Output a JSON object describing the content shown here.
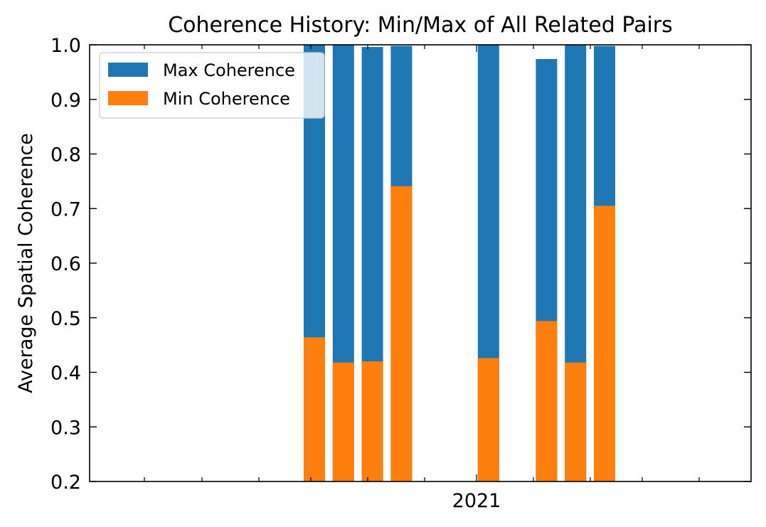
{
  "chart_data": {
    "type": "bar",
    "title": "Coherence History: Min/Max of All Related Pairs",
    "xlabel": "",
    "ylabel": "Average Spatial Coherence",
    "ylim": [
      0.2,
      1.0
    ],
    "yticks": [
      "0.2",
      "0.3",
      "0.4",
      "0.5",
      "0.6",
      "0.7",
      "0.8",
      "0.9",
      "1.0"
    ],
    "xticks": [
      "2021"
    ],
    "grid": false,
    "legend_position": "top-left",
    "bar_slots": [
      0,
      1,
      2,
      3,
      6,
      8,
      9,
      10
    ],
    "series": [
      {
        "name": "Max Coherence",
        "color": "#1f77b4",
        "values": [
          1.0,
          1.0,
          0.996,
          0.998,
          1.0,
          0.974,
          1.0,
          0.998
        ]
      },
      {
        "name": "Min Coherence",
        "color": "#ff7f0e",
        "values": [
          0.464,
          0.418,
          0.42,
          0.741,
          0.426,
          0.494,
          0.418,
          0.705
        ]
      }
    ]
  }
}
